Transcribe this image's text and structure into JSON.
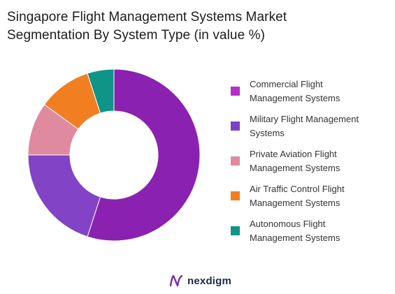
{
  "header": {
    "title_line1": "Singapore Flight Management Systems Market",
    "title_line2": "Segmentation By System Type (in value %)"
  },
  "chart_data": {
    "type": "pie",
    "variant": "donut",
    "title": "Singapore Flight Management Systems Market Segmentation By System Type (in value %)",
    "categories": [
      "Commercial Flight Management Systems",
      "Military Flight Management Systems",
      "Private Aviation Flight Management Systems",
      "Air Traffic Control Flight Management Systems",
      "Autonomous Flight Management Systems"
    ],
    "values": [
      55,
      20,
      10,
      10,
      5
    ],
    "colors": [
      "#8B21B0",
      "#8243C6",
      "#E08AA0",
      "#F27E22",
      "#0F9488"
    ],
    "legend_position": "right"
  },
  "legend": {
    "items": [
      {
        "line1": "Commercial Flight",
        "line2": "Management Systems",
        "color": "#B62FC6"
      },
      {
        "line1": "Military Flight Management",
        "line2": "Systems",
        "color": "#7F3FC4"
      },
      {
        "line1": "Private Aviation Flight",
        "line2": "Management Systems",
        "color": "#E08AA0"
      },
      {
        "line1": "Air Traffic Control Flight",
        "line2": "Management Systems",
        "color": "#F27E22"
      },
      {
        "line1": "Autonomous Flight",
        "line2": "Management Systems",
        "color": "#0F9488"
      }
    ]
  },
  "footer": {
    "logo_text": "nexdigm",
    "logo_icon": "nexdigm-logo-icon"
  }
}
